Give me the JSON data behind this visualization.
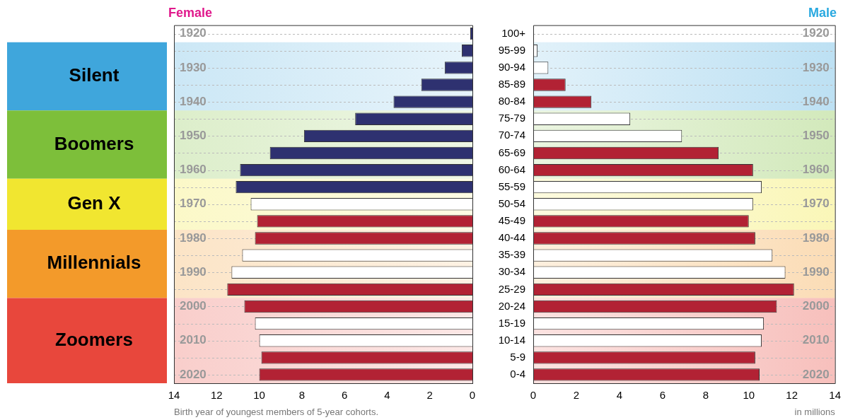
{
  "chart_data": [
    {
      "type": "bar",
      "orientation": "horizontal",
      "title": "Female",
      "xlabel": "Birth year of youngest members of 5-year cohorts.",
      "categories": [
        "100+",
        "95-99",
        "90-94",
        "85-89",
        "80-84",
        "75-79",
        "70-74",
        "65-69",
        "60-64",
        "55-59",
        "50-54",
        "45-49",
        "40-44",
        "35-39",
        "30-34",
        "25-29",
        "20-24",
        "15-19",
        "10-14",
        "5-9",
        "0-4"
      ],
      "values": [
        0.1,
        0.5,
        1.3,
        2.4,
        3.7,
        5.5,
        7.9,
        9.5,
        10.9,
        11.1,
        10.4,
        10.1,
        10.2,
        10.8,
        11.3,
        11.5,
        10.7,
        10.2,
        10.0,
        9.9,
        10.0
      ],
      "colors": [
        "#2e3170",
        "#2e3170",
        "#2e3170",
        "#2e3170",
        "#2e3170",
        "#2e3170",
        "#2e3170",
        "#2e3170",
        "#2e3170",
        "#2e3170",
        "#ffffff",
        "#b22234",
        "#b22234",
        "#ffffff",
        "#ffffff",
        "#b22234",
        "#b22234",
        "#ffffff",
        "#ffffff",
        "#b22234",
        "#b22234"
      ],
      "xlim": [
        14,
        0
      ],
      "xticks": [
        14,
        12,
        10,
        8,
        6,
        4,
        2,
        0
      ],
      "grid": "y",
      "tick_labels": "x",
      "legend": false,
      "annotations": [
        "1920",
        "1930",
        "1940",
        "1950",
        "1960",
        "1970",
        "1980",
        "1990",
        "2000",
        "2010",
        "2020"
      ],
      "bands": [
        {
          "axis": "y",
          "from": "95-99",
          "to": "80-84",
          "label": "Silent",
          "color": "#3fa6dc"
        },
        {
          "axis": "y",
          "from": "75-79",
          "to": "60-64",
          "label": "Boomers",
          "color": "#7dbf3a"
        },
        {
          "axis": "y",
          "from": "55-59",
          "to": "45-49",
          "label": "Gen X",
          "color": "#f1e630"
        },
        {
          "axis": "y",
          "from": "40-44",
          "to": "25-29",
          "label": "Millennials",
          "color": "#f39a2a"
        },
        {
          "axis": "y",
          "from": "20-24",
          "to": "0-4",
          "label": "Zoomers",
          "color": "#e8473c"
        }
      ]
    },
    {
      "type": "bar",
      "orientation": "horizontal",
      "title": "Male",
      "xlabel": "in millions",
      "categories": [
        "100+",
        "95-99",
        "90-94",
        "85-89",
        "80-84",
        "75-79",
        "70-74",
        "65-69",
        "60-64",
        "55-59",
        "50-54",
        "45-49",
        "40-44",
        "35-39",
        "30-34",
        "25-29",
        "20-24",
        "15-19",
        "10-14",
        "5-9",
        "0-4"
      ],
      "values": [
        null,
        0.2,
        0.7,
        1.5,
        2.7,
        4.5,
        6.9,
        8.6,
        10.2,
        10.6,
        10.2,
        10.0,
        10.3,
        11.1,
        11.7,
        12.1,
        11.3,
        10.7,
        10.6,
        10.3,
        10.5
      ],
      "colors": [
        "#ffffff",
        "#ffffff",
        "#ffffff",
        "#b22234",
        "#b22234",
        "#ffffff",
        "#ffffff",
        "#b22234",
        "#b22234",
        "#ffffff",
        "#ffffff",
        "#b22234",
        "#b22234",
        "#ffffff",
        "#ffffff",
        "#b22234",
        "#b22234",
        "#ffffff",
        "#ffffff",
        "#b22234",
        "#b22234"
      ],
      "xlim": [
        0,
        14
      ],
      "xticks": [
        0,
        2,
        4,
        6,
        8,
        10,
        12,
        14
      ],
      "grid": "y",
      "legend": false,
      "annotations": [
        "1920",
        "1930",
        "1940",
        "1950",
        "1960",
        "1970",
        "1980",
        "1990",
        "2000",
        "2010",
        "2020"
      ],
      "bands": [
        {
          "axis": "y",
          "from": "95-99",
          "to": "80-84",
          "color": "#3fa6dc"
        },
        {
          "axis": "y",
          "from": "75-79",
          "to": "60-64",
          "color": "#7dbf3a"
        },
        {
          "axis": "y",
          "from": "55-59",
          "to": "45-49",
          "color": "#f1e630"
        },
        {
          "axis": "y",
          "from": "40-44",
          "to": "25-29",
          "color": "#f39a2a"
        },
        {
          "axis": "y",
          "from": "20-24",
          "to": "0-4",
          "color": "#e8473c"
        }
      ]
    }
  ]
}
